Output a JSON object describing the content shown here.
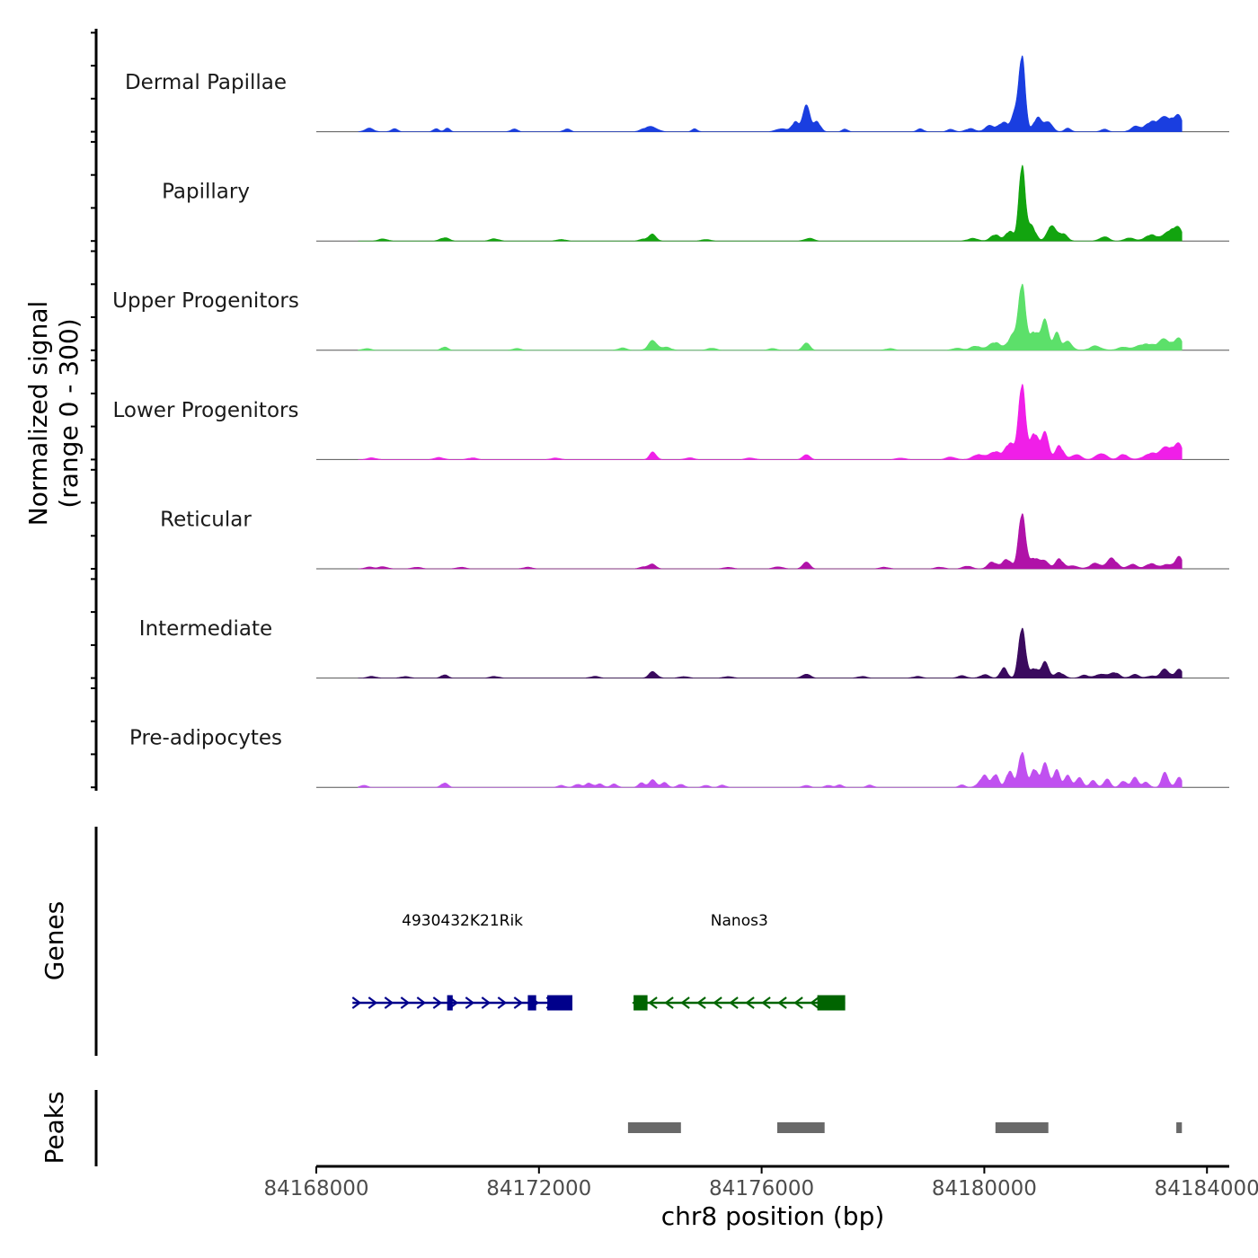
{
  "chart_data": {
    "type": "area",
    "title": "",
    "ylabel": "Normalized signal\n(range 0 - 300)",
    "ylabel_lines": [
      "Normalized signal",
      "(range 0 - 300)"
    ],
    "ylim": [
      0,
      300
    ],
    "xlabel": "chr8 position (bp)",
    "xlim": [
      84168000,
      84184400
    ],
    "x_ticks": [
      84168000,
      84172000,
      84176000,
      84180000,
      84184000
    ],
    "x_tick_labels": [
      "84168000",
      "84172000",
      "84176000",
      "84180000",
      "84184000"
    ],
    "signal_x_range": [
      84168750,
      84183550
    ],
    "series": [
      {
        "name": "Dermal Papillae",
        "color": "#1a3ee0",
        "peaks": [
          [
            84168950,
            6,
            80
          ],
          [
            84169400,
            5,
            60
          ],
          [
            84170150,
            6,
            50
          ],
          [
            84170350,
            6,
            50
          ],
          [
            84171550,
            5,
            60
          ],
          [
            84172500,
            5,
            60
          ],
          [
            84173900,
            5,
            80
          ],
          [
            84174050,
            8,
            90
          ],
          [
            84174800,
            5,
            50
          ],
          [
            84176350,
            6,
            90
          ],
          [
            84176600,
            18,
            60
          ],
          [
            84176800,
            55,
            60
          ],
          [
            84177000,
            18,
            60
          ],
          [
            84177500,
            5,
            50
          ],
          [
            84178850,
            5,
            60
          ],
          [
            84179400,
            5,
            60
          ],
          [
            84179750,
            6,
            80
          ],
          [
            84180100,
            10,
            90
          ],
          [
            84180350,
            18,
            90
          ],
          [
            84180550,
            28,
            60
          ],
          [
            84180680,
            150,
            55
          ],
          [
            84180950,
            25,
            70
          ],
          [
            84181150,
            20,
            70
          ],
          [
            84181500,
            6,
            60
          ],
          [
            84182150,
            5,
            60
          ],
          [
            84182700,
            8,
            80
          ],
          [
            84183000,
            18,
            120
          ],
          [
            84183300,
            25,
            130
          ],
          [
            84183500,
            22,
            80
          ]
        ]
      },
      {
        "name": "Papillary",
        "color": "#12a40f",
        "peaks": [
          [
            84169200,
            4,
            80
          ],
          [
            84170300,
            6,
            80
          ],
          [
            84171200,
            4,
            80
          ],
          [
            84172400,
            3,
            80
          ],
          [
            84173900,
            4,
            80
          ],
          [
            84174050,
            12,
            60
          ],
          [
            84175000,
            3,
            80
          ],
          [
            84176850,
            5,
            80
          ],
          [
            84179800,
            5,
            90
          ],
          [
            84180200,
            12,
            80
          ],
          [
            84180450,
            18,
            70
          ],
          [
            84180680,
            150,
            55
          ],
          [
            84180850,
            28,
            70
          ],
          [
            84181200,
            30,
            70
          ],
          [
            84181400,
            14,
            80
          ],
          [
            84182150,
            8,
            80
          ],
          [
            84182600,
            6,
            80
          ],
          [
            84183000,
            12,
            110
          ],
          [
            84183350,
            20,
            100
          ],
          [
            84183500,
            18,
            80
          ]
        ]
      },
      {
        "name": "Upper Progenitors",
        "color": "#5ce06a",
        "peaks": [
          [
            84168900,
            3,
            80
          ],
          [
            84170300,
            6,
            60
          ],
          [
            84171600,
            3,
            80
          ],
          [
            84173500,
            4,
            80
          ],
          [
            84174050,
            18,
            80
          ],
          [
            84174300,
            5,
            80
          ],
          [
            84175100,
            4,
            80
          ],
          [
            84176200,
            3,
            80
          ],
          [
            84176800,
            15,
            60
          ],
          [
            84178300,
            3,
            80
          ],
          [
            84179500,
            4,
            80
          ],
          [
            84179850,
            8,
            100
          ],
          [
            84180200,
            15,
            100
          ],
          [
            84180500,
            25,
            80
          ],
          [
            84180680,
            130,
            60
          ],
          [
            84180900,
            35,
            80
          ],
          [
            84181100,
            55,
            60
          ],
          [
            84181300,
            30,
            60
          ],
          [
            84181500,
            15,
            80
          ],
          [
            84182000,
            8,
            100
          ],
          [
            84182500,
            6,
            100
          ],
          [
            84182900,
            12,
            140
          ],
          [
            84183250,
            18,
            120
          ],
          [
            84183500,
            20,
            80
          ]
        ]
      },
      {
        "name": "Lower Progenitors",
        "color": "#f01fe8",
        "peaks": [
          [
            84169000,
            3,
            80
          ],
          [
            84170200,
            4,
            80
          ],
          [
            84170800,
            3,
            80
          ],
          [
            84172300,
            3,
            80
          ],
          [
            84174050,
            14,
            60
          ],
          [
            84174700,
            3,
            80
          ],
          [
            84175800,
            3,
            80
          ],
          [
            84176800,
            10,
            60
          ],
          [
            84178500,
            3,
            80
          ],
          [
            84179400,
            5,
            80
          ],
          [
            84179900,
            10,
            100
          ],
          [
            84180200,
            15,
            90
          ],
          [
            84180450,
            30,
            80
          ],
          [
            84180680,
            150,
            60
          ],
          [
            84180900,
            50,
            70
          ],
          [
            84181100,
            50,
            60
          ],
          [
            84181350,
            25,
            70
          ],
          [
            84181650,
            10,
            80
          ],
          [
            84182100,
            12,
            90
          ],
          [
            84182500,
            10,
            80
          ],
          [
            84183000,
            12,
            120
          ],
          [
            84183300,
            22,
            110
          ],
          [
            84183500,
            25,
            80
          ]
        ]
      },
      {
        "name": "Reticular",
        "color": "#b012a8",
        "peaks": [
          [
            84168950,
            3,
            80
          ],
          [
            84169200,
            4,
            80
          ],
          [
            84169800,
            3,
            80
          ],
          [
            84170600,
            3,
            80
          ],
          [
            84171800,
            3,
            80
          ],
          [
            84173900,
            4,
            80
          ],
          [
            84174050,
            8,
            60
          ],
          [
            84175400,
            3,
            80
          ],
          [
            84176300,
            4,
            80
          ],
          [
            84176800,
            14,
            60
          ],
          [
            84178200,
            3,
            80
          ],
          [
            84179200,
            3,
            80
          ],
          [
            84179700,
            5,
            80
          ],
          [
            84180150,
            12,
            80
          ],
          [
            84180400,
            18,
            80
          ],
          [
            84180680,
            110,
            60
          ],
          [
            84180900,
            20,
            80
          ],
          [
            84181100,
            14,
            70
          ],
          [
            84181350,
            18,
            70
          ],
          [
            84181600,
            6,
            80
          ],
          [
            84182000,
            10,
            100
          ],
          [
            84182300,
            18,
            90
          ],
          [
            84182650,
            8,
            80
          ],
          [
            84183000,
            10,
            100
          ],
          [
            84183300,
            8,
            80
          ],
          [
            84183500,
            22,
            70
          ]
        ]
      },
      {
        "name": "Intermediate",
        "color": "#3a0a5e",
        "peaks": [
          [
            84169000,
            3,
            80
          ],
          [
            84169600,
            3,
            80
          ],
          [
            84170300,
            6,
            60
          ],
          [
            84171200,
            3,
            80
          ],
          [
            84173000,
            3,
            80
          ],
          [
            84174050,
            12,
            70
          ],
          [
            84174600,
            3,
            80
          ],
          [
            84175400,
            3,
            80
          ],
          [
            84176800,
            8,
            70
          ],
          [
            84177800,
            3,
            80
          ],
          [
            84178800,
            3,
            80
          ],
          [
            84179600,
            4,
            80
          ],
          [
            84180000,
            6,
            80
          ],
          [
            84180350,
            20,
            60
          ],
          [
            84180680,
            100,
            60
          ],
          [
            84180900,
            18,
            70
          ],
          [
            84181100,
            30,
            60
          ],
          [
            84181350,
            10,
            80
          ],
          [
            84181800,
            5,
            80
          ],
          [
            84182100,
            8,
            90
          ],
          [
            84182350,
            10,
            80
          ],
          [
            84182700,
            6,
            80
          ],
          [
            84183000,
            4,
            80
          ],
          [
            84183250,
            15,
            80
          ],
          [
            84183500,
            16,
            70
          ]
        ]
      },
      {
        "name": "Pre-adipocytes",
        "color": "#c050f0",
        "peaks": [
          [
            84168850,
            4,
            60
          ],
          [
            84170300,
            8,
            60
          ],
          [
            84172400,
            4,
            60
          ],
          [
            84172700,
            6,
            60
          ],
          [
            84172900,
            8,
            60
          ],
          [
            84173100,
            6,
            60
          ],
          [
            84173350,
            6,
            60
          ],
          [
            84173850,
            8,
            60
          ],
          [
            84174050,
            14,
            60
          ],
          [
            84174250,
            8,
            60
          ],
          [
            84174550,
            6,
            60
          ],
          [
            84175000,
            4,
            60
          ],
          [
            84175300,
            4,
            60
          ],
          [
            84176800,
            4,
            60
          ],
          [
            84177200,
            4,
            60
          ],
          [
            84177400,
            4,
            60
          ],
          [
            84177950,
            4,
            60
          ],
          [
            84179600,
            4,
            60
          ],
          [
            84179900,
            6,
            60
          ],
          [
            84180000,
            20,
            60
          ],
          [
            84180200,
            25,
            60
          ],
          [
            84180450,
            30,
            60
          ],
          [
            84180680,
            70,
            60
          ],
          [
            84180900,
            35,
            60
          ],
          [
            84181100,
            45,
            60
          ],
          [
            84181300,
            30,
            60
          ],
          [
            84181500,
            20,
            60
          ],
          [
            84181700,
            18,
            60
          ],
          [
            84181950,
            12,
            60
          ],
          [
            84182200,
            14,
            60
          ],
          [
            84182500,
            12,
            60
          ],
          [
            84182700,
            16,
            60
          ],
          [
            84182900,
            10,
            60
          ],
          [
            84183250,
            25,
            60
          ],
          [
            84183500,
            18,
            60
          ]
        ]
      }
    ],
    "genes_label": "Genes",
    "genes": [
      {
        "name": "4930432K21Rik",
        "strand": "+",
        "color": "#00008b",
        "start": 84168650,
        "end": 84172600,
        "exons": [
          [
            84170350,
            84170450
          ],
          [
            84171800,
            84171950
          ],
          [
            84172150,
            84172600
          ]
        ]
      },
      {
        "name": "Nanos3",
        "strand": "-",
        "color": "#006400",
        "start": 84173700,
        "end": 84177500,
        "exons": [
          [
            84173700,
            84173950
          ],
          [
            84177000,
            84177500
          ]
        ]
      }
    ],
    "peaks_label": "Peaks",
    "peak_regions": [
      [
        84173600,
        84174550
      ],
      [
        84176280,
        84177130
      ],
      [
        84180200,
        84181150
      ],
      [
        84183450,
        84183550
      ]
    ],
    "peak_color": "#696969"
  }
}
